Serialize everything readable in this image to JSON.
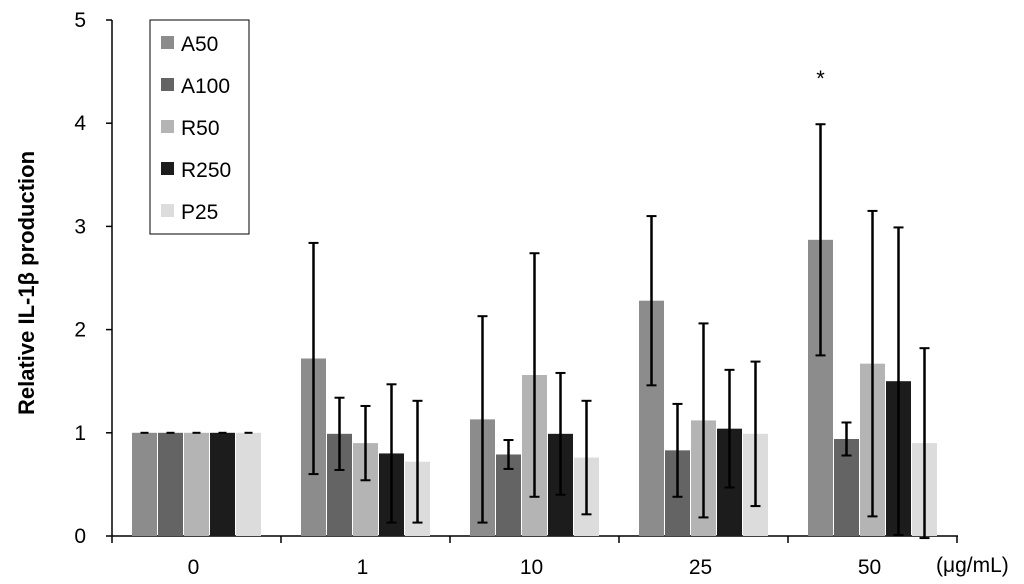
{
  "chart_data": {
    "type": "bar",
    "categories": [
      "0",
      "1",
      "10",
      "25",
      "50"
    ],
    "x_unit_label": "(μg/mL)",
    "ylabel": "Relative IL-1β production",
    "ylim": [
      0,
      5
    ],
    "yticks": [
      "0",
      "1",
      "2",
      "3",
      "4",
      "5"
    ],
    "legend_position": "top-left",
    "grid": false,
    "series": [
      {
        "name": "A50",
        "color": "#8c8c8c",
        "values": [
          1.0,
          1.72,
          1.13,
          2.28,
          2.87
        ],
        "errors": [
          0.0,
          1.12,
          1.0,
          0.82,
          1.12
        ]
      },
      {
        "name": "A100",
        "color": "#646464",
        "values": [
          1.0,
          0.99,
          0.79,
          0.83,
          0.94
        ],
        "errors": [
          0.0,
          0.35,
          0.14,
          0.45,
          0.16
        ]
      },
      {
        "name": "R50",
        "color": "#b4b4b4",
        "values": [
          1.0,
          0.9,
          1.56,
          1.12,
          1.67
        ],
        "errors": [
          0.0,
          0.36,
          1.18,
          0.94,
          1.48
        ]
      },
      {
        "name": "R250",
        "color": "#1c1c1c",
        "values": [
          1.0,
          0.8,
          0.99,
          1.04,
          1.5
        ],
        "errors": [
          0.0,
          0.67,
          0.59,
          0.57,
          1.49
        ]
      },
      {
        "name": "P25",
        "color": "#dcdcdc",
        "values": [
          1.0,
          0.72,
          0.76,
          0.99,
          0.9
        ],
        "errors": [
          0.0,
          0.59,
          0.55,
          0.7,
          0.92
        ]
      }
    ],
    "annotations": [
      {
        "category": "50",
        "series": "A50",
        "text": "*"
      }
    ]
  }
}
